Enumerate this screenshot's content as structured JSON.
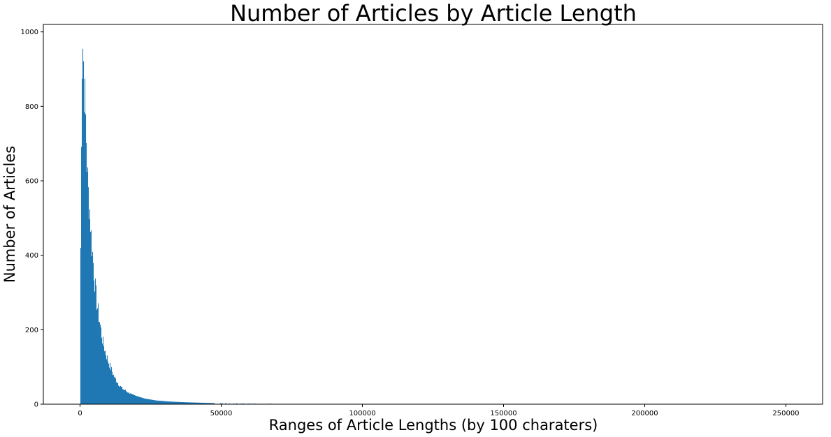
{
  "chart_data": {
    "type": "bar",
    "title": "Number of Articles by Article Length",
    "xlabel": "Ranges of Article Lengths (by 100 charaters)",
    "ylabel": "Number of Articles",
    "xlim": [
      -13000,
      263000
    ],
    "ylim": [
      0,
      1020
    ],
    "grid": false,
    "bar_color": "#1f77b4",
    "bin_width": 100,
    "x_ticks": [
      0,
      50000,
      100000,
      150000,
      200000,
      250000
    ],
    "x_tick_labels": [
      "0",
      "50000",
      "100000",
      "150000",
      "200000",
      "250000"
    ],
    "y_ticks": [
      0,
      200,
      400,
      600,
      800,
      1000
    ],
    "y_tick_labels": [
      "0",
      "200",
      "400",
      "600",
      "800",
      "1000"
    ],
    "histogram_profile": [
      [
        0,
        0
      ],
      [
        100,
        150
      ],
      [
        300,
        520
      ],
      [
        600,
        880
      ],
      [
        900,
        970
      ],
      [
        1100,
        960
      ],
      [
        1400,
        870
      ],
      [
        1800,
        800
      ],
      [
        2200,
        720
      ],
      [
        2600,
        620
      ],
      [
        3000,
        560
      ],
      [
        3500,
        520
      ],
      [
        4000,
        445
      ],
      [
        4500,
        400
      ],
      [
        5000,
        350
      ],
      [
        5500,
        305
      ],
      [
        6000,
        270
      ],
      [
        7000,
        220
      ],
      [
        8000,
        170
      ],
      [
        9000,
        140
      ],
      [
        10000,
        115
      ],
      [
        11000,
        95
      ],
      [
        12000,
        75
      ],
      [
        13000,
        62
      ],
      [
        14000,
        50
      ],
      [
        15000,
        42
      ],
      [
        17000,
        32
      ],
      [
        20000,
        22
      ],
      [
        23000,
        15
      ],
      [
        27000,
        10
      ],
      [
        32000,
        7
      ],
      [
        38000,
        5
      ],
      [
        45000,
        3.5
      ],
      [
        50000,
        2.5
      ],
      [
        60000,
        1.5
      ],
      [
        75000,
        1
      ],
      [
        90000,
        0.8
      ],
      [
        110000,
        0.6
      ],
      [
        130000,
        0.4
      ],
      [
        160000,
        0.3
      ],
      [
        200000,
        0.2
      ],
      [
        252000,
        0.1
      ]
    ]
  }
}
